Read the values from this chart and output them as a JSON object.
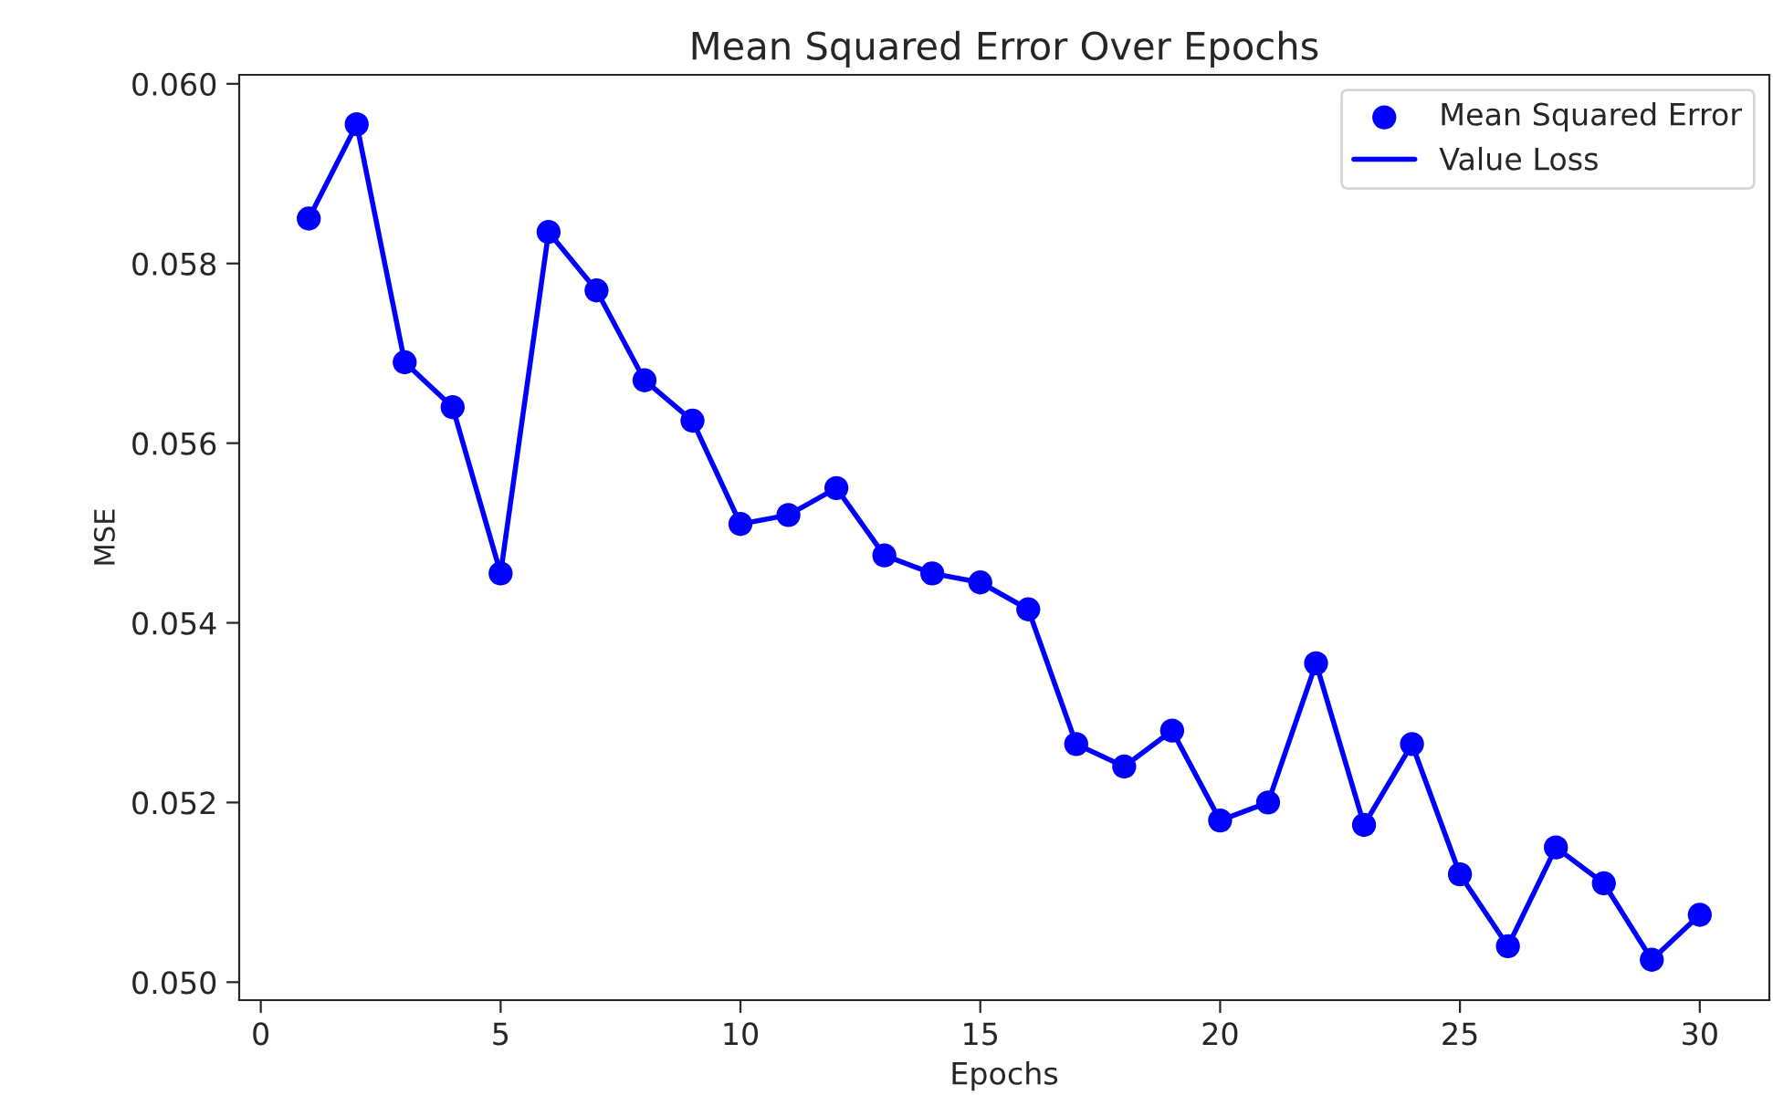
{
  "chart_data": {
    "type": "line",
    "title": "Mean Squared Error Over Epochs",
    "xlabel": "Epochs",
    "ylabel": "MSE",
    "x": [
      1,
      2,
      3,
      4,
      5,
      6,
      7,
      8,
      9,
      10,
      11,
      12,
      13,
      14,
      15,
      16,
      17,
      18,
      19,
      20,
      21,
      22,
      23,
      24,
      25,
      26,
      27,
      28,
      29,
      30
    ],
    "series": [
      {
        "name": "Mean Squared Error",
        "type": "scatter",
        "color": "#0000ff",
        "marker": "circle",
        "values": [
          0.0585,
          0.05955,
          0.0569,
          0.0564,
          0.05455,
          0.05835,
          0.0577,
          0.0567,
          0.05625,
          0.0551,
          0.0552,
          0.0555,
          0.05475,
          0.05455,
          0.05445,
          0.05415,
          0.05265,
          0.0524,
          0.0528,
          0.0518,
          0.052,
          0.05355,
          0.05175,
          0.05265,
          0.0512,
          0.0504,
          0.0515,
          0.0511,
          0.05025,
          0.05075
        ]
      },
      {
        "name": "Value Loss",
        "color": "#0000ff",
        "line_style": "solid",
        "values": [
          0.0585,
          0.05955,
          0.0569,
          0.0564,
          0.05455,
          0.05835,
          0.0577,
          0.0567,
          0.05625,
          0.0551,
          0.0552,
          0.0555,
          0.05475,
          0.05455,
          0.05445,
          0.05415,
          0.05265,
          0.0524,
          0.0528,
          0.0518,
          0.052,
          0.05355,
          0.05175,
          0.05265,
          0.0512,
          0.0504,
          0.0515,
          0.0511,
          0.05025,
          0.05075
        ]
      }
    ],
    "xlim": [
      -0.45,
      31.45
    ],
    "xticks": [
      0,
      5,
      10,
      15,
      20,
      25,
      30
    ],
    "ylim": [
      0.0498,
      0.0601
    ],
    "yticks": [
      {
        "value": 0.05,
        "label": "0.050"
      },
      {
        "value": 0.052,
        "label": "0.052"
      },
      {
        "value": 0.054,
        "label": "0.054"
      },
      {
        "value": 0.056,
        "label": "0.056"
      },
      {
        "value": 0.058,
        "label": "0.058"
      },
      {
        "value": 0.06,
        "label": "0.060"
      }
    ],
    "grid": false,
    "legend": "top right"
  }
}
